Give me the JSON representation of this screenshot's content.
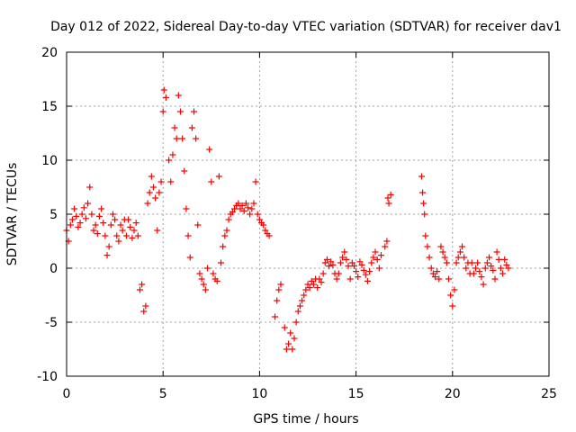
{
  "chart_data": {
    "type": "scatter",
    "title": "Day 012 of 2022, Sidereal Day-to-day VTEC variation (SDTVAR) for receiver dav1",
    "xlabel": "GPS time / hours",
    "ylabel": "SDTVAR / TECUs",
    "xlim": [
      0,
      25
    ],
    "ylim": [
      -10,
      20
    ],
    "x_ticks": [
      0,
      5,
      10,
      15,
      20,
      25
    ],
    "x_tick_labels": [
      "0",
      "5",
      "10",
      "15",
      "20",
      "25"
    ],
    "y_ticks": [
      -10,
      -5,
      0,
      5,
      10,
      15,
      20
    ],
    "y_tick_labels": [
      "-10",
      "-5",
      "0",
      "5",
      "10",
      "15",
      "20"
    ],
    "grid": true,
    "marker": "plus",
    "color": "#ff0000",
    "series": [
      {
        "name": "dav1",
        "points": [
          [
            0.0,
            3.5
          ],
          [
            0.1,
            2.5
          ],
          [
            0.2,
            4.0
          ],
          [
            0.3,
            4.5
          ],
          [
            0.4,
            5.5
          ],
          [
            0.5,
            4.8
          ],
          [
            0.6,
            3.8
          ],
          [
            0.7,
            4.2
          ],
          [
            0.8,
            5.0
          ],
          [
            0.9,
            5.6
          ],
          [
            1.0,
            4.6
          ],
          [
            1.1,
            6.0
          ],
          [
            1.2,
            7.5
          ],
          [
            1.3,
            5.0
          ],
          [
            1.4,
            3.5
          ],
          [
            1.5,
            4.0
          ],
          [
            1.6,
            3.2
          ],
          [
            1.7,
            4.8
          ],
          [
            1.8,
            5.5
          ],
          [
            1.9,
            4.2
          ],
          [
            2.0,
            3.0
          ],
          [
            2.1,
            1.2
          ],
          [
            2.2,
            2.0
          ],
          [
            2.3,
            4.0
          ],
          [
            2.4,
            5.0
          ],
          [
            2.5,
            4.5
          ],
          [
            2.6,
            3.0
          ],
          [
            2.7,
            2.5
          ],
          [
            2.8,
            4.0
          ],
          [
            2.9,
            3.5
          ],
          [
            3.0,
            4.5
          ],
          [
            3.1,
            3.0
          ],
          [
            3.2,
            4.5
          ],
          [
            3.3,
            3.8
          ],
          [
            3.4,
            2.8
          ],
          [
            3.5,
            3.5
          ],
          [
            3.6,
            4.2
          ],
          [
            3.7,
            3.0
          ],
          [
            3.8,
            -2.0
          ],
          [
            3.9,
            -1.5
          ],
          [
            4.0,
            -4.0
          ],
          [
            4.1,
            -3.5
          ],
          [
            4.2,
            6.0
          ],
          [
            4.3,
            7.0
          ],
          [
            4.4,
            8.5
          ],
          [
            4.5,
            7.5
          ],
          [
            4.6,
            6.5
          ],
          [
            4.7,
            3.5
          ],
          [
            4.8,
            7.0
          ],
          [
            4.9,
            8.0
          ],
          [
            5.0,
            14.5
          ],
          [
            5.05,
            16.5
          ],
          [
            5.15,
            15.8
          ],
          [
            5.3,
            10.0
          ],
          [
            5.4,
            8.0
          ],
          [
            5.5,
            10.5
          ],
          [
            5.6,
            13.0
          ],
          [
            5.7,
            12.0
          ],
          [
            5.8,
            16.0
          ],
          [
            5.9,
            14.5
          ],
          [
            6.0,
            12.0
          ],
          [
            6.1,
            9.0
          ],
          [
            6.2,
            5.5
          ],
          [
            6.3,
            3.0
          ],
          [
            6.4,
            1.0
          ],
          [
            6.5,
            13.0
          ],
          [
            6.6,
            14.5
          ],
          [
            6.7,
            12.0
          ],
          [
            6.8,
            4.0
          ],
          [
            6.9,
            -0.5
          ],
          [
            7.0,
            -1.0
          ],
          [
            7.1,
            -1.5
          ],
          [
            7.2,
            -2.0
          ],
          [
            7.3,
            0.0
          ],
          [
            7.4,
            11.0
          ],
          [
            7.5,
            8.0
          ],
          [
            7.6,
            -0.5
          ],
          [
            7.7,
            -1.0
          ],
          [
            7.8,
            -1.2
          ],
          [
            7.9,
            8.5
          ],
          [
            8.0,
            0.5
          ],
          [
            8.1,
            2.0
          ],
          [
            8.2,
            3.0
          ],
          [
            8.3,
            3.5
          ],
          [
            8.4,
            4.5
          ],
          [
            8.5,
            5.0
          ],
          [
            8.6,
            5.2
          ],
          [
            8.7,
            5.5
          ],
          [
            8.8,
            5.8
          ],
          [
            8.9,
            6.0
          ],
          [
            9.0,
            5.5
          ],
          [
            9.1,
            5.8
          ],
          [
            9.2,
            5.3
          ],
          [
            9.3,
            6.0
          ],
          [
            9.4,
            5.6
          ],
          [
            9.5,
            5.0
          ],
          [
            9.6,
            5.5
          ],
          [
            9.7,
            6.0
          ],
          [
            9.8,
            8.0
          ],
          [
            9.9,
            5.0
          ],
          [
            10.0,
            4.5
          ],
          [
            10.1,
            4.2
          ],
          [
            10.2,
            4.0
          ],
          [
            10.3,
            3.5
          ],
          [
            10.4,
            3.2
          ],
          [
            10.5,
            3.0
          ],
          [
            10.8,
            -4.5
          ],
          [
            10.9,
            -3.0
          ],
          [
            11.0,
            -2.0
          ],
          [
            11.1,
            -1.5
          ],
          [
            11.3,
            -5.5
          ],
          [
            11.4,
            -7.5
          ],
          [
            11.5,
            -7.0
          ],
          [
            11.6,
            -6.0
          ],
          [
            11.7,
            -7.5
          ],
          [
            11.8,
            -6.5
          ],
          [
            11.9,
            -5.0
          ],
          [
            12.0,
            -4.0
          ],
          [
            12.1,
            -3.5
          ],
          [
            12.2,
            -3.0
          ],
          [
            12.3,
            -2.5
          ],
          [
            12.4,
            -2.0
          ],
          [
            12.5,
            -1.5
          ],
          [
            12.6,
            -1.8
          ],
          [
            12.7,
            -1.2
          ],
          [
            12.8,
            -1.5
          ],
          [
            12.9,
            -1.0
          ],
          [
            13.0,
            -1.8
          ],
          [
            13.1,
            -1.0
          ],
          [
            13.2,
            -1.3
          ],
          [
            13.3,
            -0.5
          ],
          [
            13.4,
            0.5
          ],
          [
            13.5,
            0.8
          ],
          [
            13.6,
            0.2
          ],
          [
            13.7,
            0.6
          ],
          [
            13.8,
            0.3
          ],
          [
            13.9,
            -0.5
          ],
          [
            14.0,
            -1.0
          ],
          [
            14.1,
            -0.5
          ],
          [
            14.2,
            0.5
          ],
          [
            14.3,
            1.0
          ],
          [
            14.4,
            1.5
          ],
          [
            14.5,
            0.8
          ],
          [
            14.6,
            0.2
          ],
          [
            14.7,
            -1.0
          ],
          [
            14.8,
            0.5
          ],
          [
            14.9,
            0.2
          ],
          [
            15.0,
            -0.3
          ],
          [
            15.1,
            -0.8
          ],
          [
            15.2,
            0.6
          ],
          [
            15.3,
            0.3
          ],
          [
            15.4,
            -0.2
          ],
          [
            15.5,
            -0.6
          ],
          [
            15.6,
            -1.2
          ],
          [
            15.7,
            -0.3
          ],
          [
            15.8,
            0.5
          ],
          [
            15.9,
            1.0
          ],
          [
            16.0,
            1.5
          ],
          [
            16.1,
            0.8
          ],
          [
            16.2,
            0.0
          ],
          [
            16.3,
            1.2
          ],
          [
            16.5,
            2.0
          ],
          [
            16.6,
            2.5
          ],
          [
            16.65,
            6.5
          ],
          [
            16.7,
            6.0
          ],
          [
            16.8,
            6.8
          ],
          [
            18.4,
            8.5
          ],
          [
            18.45,
            7.0
          ],
          [
            18.5,
            6.0
          ],
          [
            18.55,
            5.0
          ],
          [
            18.6,
            3.0
          ],
          [
            18.7,
            2.0
          ],
          [
            18.8,
            1.0
          ],
          [
            18.9,
            0.0
          ],
          [
            19.0,
            -0.5
          ],
          [
            19.1,
            -0.8
          ],
          [
            19.2,
            -0.3
          ],
          [
            19.3,
            -1.0
          ],
          [
            19.4,
            2.0
          ],
          [
            19.5,
            1.5
          ],
          [
            19.6,
            1.0
          ],
          [
            19.7,
            0.5
          ],
          [
            19.8,
            -1.0
          ],
          [
            19.9,
            -2.5
          ],
          [
            20.0,
            -3.5
          ],
          [
            20.1,
            -2.0
          ],
          [
            20.2,
            0.5
          ],
          [
            20.3,
            1.0
          ],
          [
            20.4,
            1.5
          ],
          [
            20.5,
            2.0
          ],
          [
            20.6,
            1.0
          ],
          [
            20.7,
            0.0
          ],
          [
            20.8,
            0.5
          ],
          [
            20.9,
            -0.5
          ],
          [
            21.0,
            0.5
          ],
          [
            21.1,
            -0.5
          ],
          [
            21.2,
            0.0
          ],
          [
            21.3,
            0.5
          ],
          [
            21.4,
            -0.3
          ],
          [
            21.5,
            -0.8
          ],
          [
            21.6,
            -1.5
          ],
          [
            21.7,
            0.0
          ],
          [
            21.8,
            0.5
          ],
          [
            21.9,
            1.0
          ],
          [
            22.0,
            0.2
          ],
          [
            22.1,
            -0.2
          ],
          [
            22.2,
            -1.0
          ],
          [
            22.3,
            1.5
          ],
          [
            22.4,
            0.8
          ],
          [
            22.5,
            0.0
          ],
          [
            22.6,
            -0.5
          ],
          [
            22.7,
            0.8
          ],
          [
            22.8,
            0.3
          ],
          [
            22.9,
            0.0
          ]
        ]
      }
    ]
  }
}
